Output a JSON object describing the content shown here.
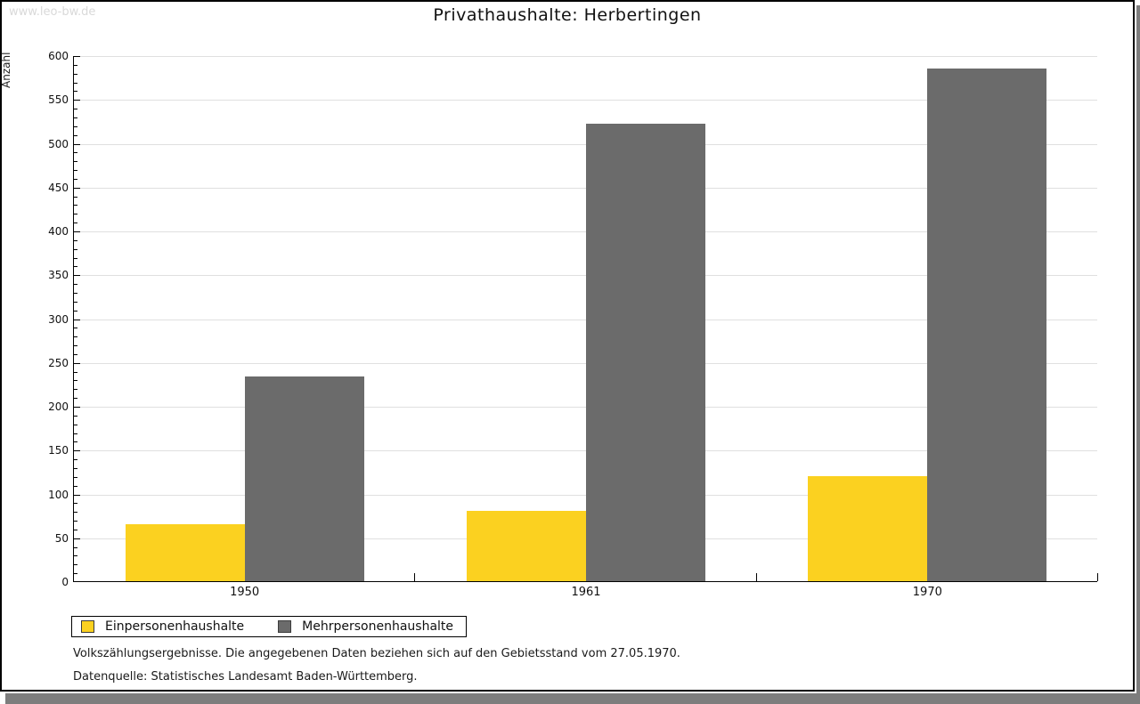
{
  "watermark": "www.leo-bw.de",
  "title": "Privathaushalte: Herbertingen",
  "notes": {
    "line1": "Volkszählungsergebnisse. Die angegebenen Daten beziehen sich auf den Gebietsstand vom 27.05.1970.",
    "line2": "Datenquelle: Statistisches Landesamt Baden-Württemberg."
  },
  "colors": {
    "series_yellow": "#fbd120",
    "series_gray": "#6b6b6b",
    "gridline": "#e0e0e0",
    "axis": "#000000",
    "frame_shadow": "#7d7d7d",
    "watermark": "#d9d9d9"
  },
  "chart_data": {
    "type": "bar",
    "title": "Privathaushalte: Herbertingen",
    "xlabel": "",
    "ylabel": "Anzahl",
    "categories": [
      "1950",
      "1961",
      "1970"
    ],
    "series": [
      {
        "name": "Einpersonenhaushalte",
        "color": "#fbd120",
        "values": [
          65,
          80,
          120
        ]
      },
      {
        "name": "Mehrpersonenhaushalte",
        "color": "#6b6b6b",
        "values": [
          234,
          522,
          585
        ]
      }
    ],
    "ylim": [
      0,
      600
    ],
    "y_major_step": 50,
    "y_minor_step": 10,
    "grid": true,
    "legend_position": "bottom-left"
  }
}
